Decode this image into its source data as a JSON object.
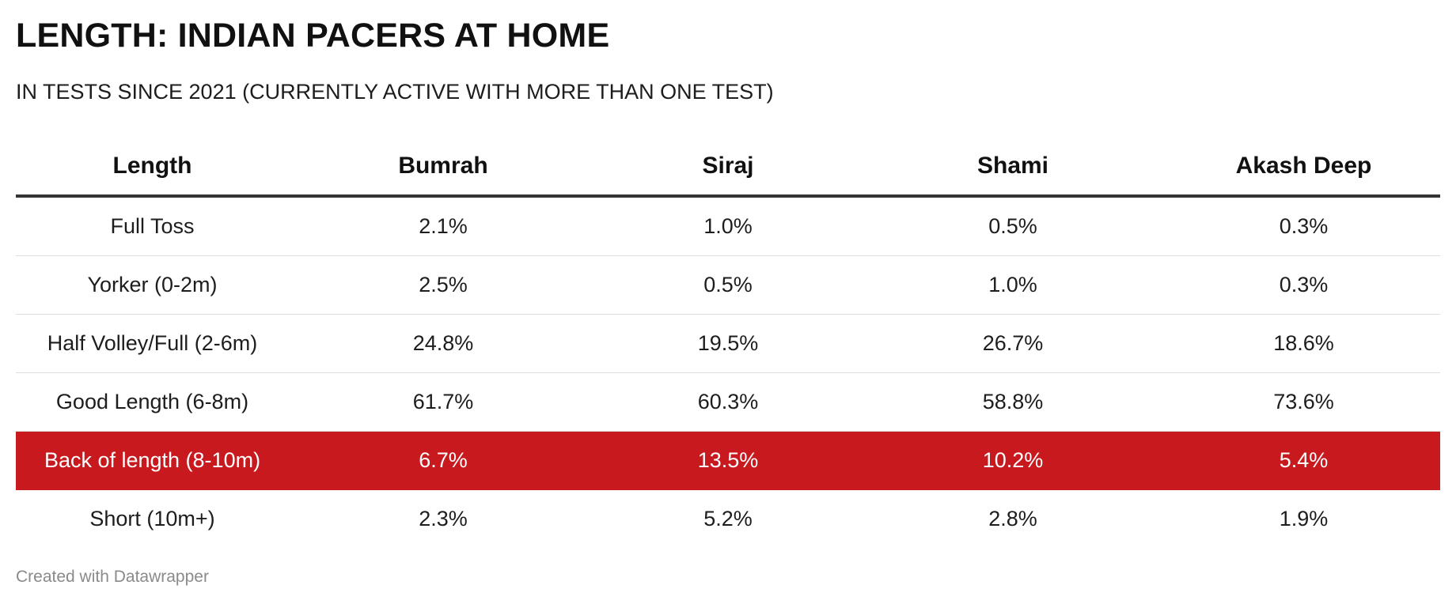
{
  "title": "LENGTH: INDIAN PACERS AT HOME",
  "subtitle": "IN TESTS SINCE 2021 (CURRENTLY ACTIVE WITH MORE THAN ONE TEST)",
  "footer": "Created with Datawrapper",
  "colors": {
    "highlight": "#c81a1e",
    "text": "#1d1d1d",
    "footer": "#8a8a8a"
  },
  "chart_data": {
    "type": "table",
    "title": "LENGTH: INDIAN PACERS AT HOME",
    "subtitle": "IN TESTS SINCE 2021 (CURRENTLY ACTIVE WITH MORE THAN ONE TEST)",
    "columns": [
      "Length",
      "Bumrah",
      "Siraj",
      "Shami",
      "Akash Deep"
    ],
    "rows": [
      {
        "cells": [
          "Full Toss",
          "2.1%",
          "1.0%",
          "0.5%",
          "0.3%"
        ],
        "highlight": false
      },
      {
        "cells": [
          "Yorker (0-2m)",
          "2.5%",
          "0.5%",
          "1.0%",
          "0.3%"
        ],
        "highlight": false
      },
      {
        "cells": [
          "Half Volley/Full (2-6m)",
          "24.8%",
          "19.5%",
          "26.7%",
          "18.6%"
        ],
        "highlight": false
      },
      {
        "cells": [
          "Good Length (6-8m)",
          "61.7%",
          "60.3%",
          "58.8%",
          "73.6%"
        ],
        "highlight": false
      },
      {
        "cells": [
          "Back of length (8-10m)",
          "6.7%",
          "13.5%",
          "10.2%",
          "5.4%"
        ],
        "highlight": true
      },
      {
        "cells": [
          "Short (10m+)",
          "2.3%",
          "5.2%",
          "2.8%",
          "1.9%"
        ],
        "highlight": false
      }
    ]
  }
}
